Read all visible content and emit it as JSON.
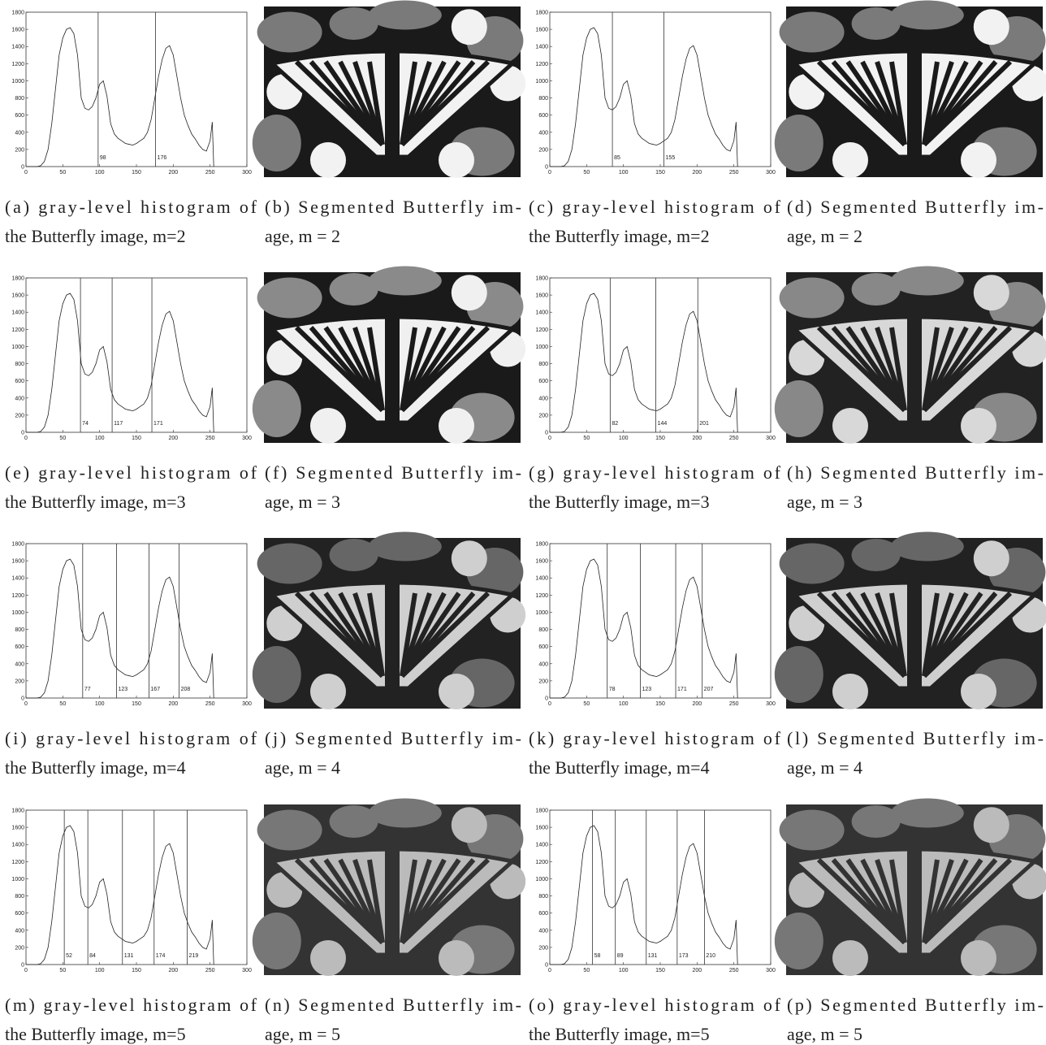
{
  "chart_data": {
    "type": "line",
    "x": [
      0,
      5,
      10,
      15,
      20,
      25,
      30,
      35,
      40,
      45,
      50,
      55,
      60,
      65,
      70,
      75,
      80,
      85,
      90,
      95,
      100,
      105,
      110,
      115,
      120,
      125,
      130,
      135,
      140,
      145,
      150,
      155,
      160,
      165,
      170,
      175,
      180,
      185,
      190,
      195,
      200,
      205,
      210,
      215,
      220,
      225,
      230,
      235,
      240,
      245,
      250,
      253,
      255
    ],
    "values": [
      0,
      0,
      0,
      0,
      10,
      60,
      200,
      500,
      900,
      1300,
      1500,
      1600,
      1620,
      1550,
      1300,
      800,
      680,
      660,
      700,
      800,
      960,
      1000,
      820,
      500,
      380,
      330,
      300,
      270,
      260,
      250,
      270,
      300,
      330,
      400,
      550,
      800,
      1050,
      1250,
      1380,
      1410,
      1300,
      1050,
      800,
      600,
      480,
      380,
      320,
      250,
      200,
      180,
      300,
      520,
      0
    ],
    "color": "#222222",
    "xlim": [
      0,
      300
    ],
    "ylim": [
      0,
      1800
    ],
    "xticks": [
      0,
      50,
      100,
      150,
      200,
      250,
      300
    ],
    "yticks": [
      0,
      200,
      400,
      600,
      800,
      1000,
      1200,
      1400,
      1600,
      1800
    ],
    "panels": [
      {
        "thresholds": [
          98,
          176
        ],
        "caption": [
          "(a) gray-level histogram of",
          "the Butterfly image, m=2"
        ]
      },
      {
        "thresholds": [
          85,
          155
        ],
        "caption": [
          "(c) gray-level histogram of",
          "the Butterfly image, m=2"
        ]
      },
      {
        "thresholds": [
          74,
          117,
          171
        ],
        "caption": [
          "(e) gray-level histogram of",
          "the Butterfly image, m=3"
        ]
      },
      {
        "thresholds": [
          82,
          144,
          201
        ],
        "caption": [
          "(g) gray-level histogram of",
          "the Butterfly image, m=3"
        ]
      },
      {
        "thresholds": [
          77,
          123,
          167,
          208
        ],
        "caption": [
          "(i) gray-level histogram of",
          "the Butterfly image, m=4"
        ]
      },
      {
        "thresholds": [
          78,
          123,
          171,
          207
        ],
        "caption": [
          "(k) gray-level histogram of",
          "the Butterfly image, m=4"
        ]
      },
      {
        "thresholds": [
          52,
          84,
          131,
          174,
          219
        ],
        "caption": [
          "(m) gray-level histogram of",
          "the Butterfly image, m=5"
        ]
      },
      {
        "thresholds": [
          58,
          89,
          131,
          173,
          210
        ],
        "caption": [
          "(o) gray-level histogram of",
          "the Butterfly image, m=5"
        ]
      }
    ]
  },
  "images": [
    {
      "caption": [
        "(b) Segmented Butterfly im-",
        "age, m = 2"
      ]
    },
    {
      "caption": [
        "(d) Segmented Butterfly im-",
        "age, m = 2"
      ]
    },
    {
      "caption": [
        "(f) Segmented Butterfly im-",
        "age, m = 3"
      ]
    },
    {
      "caption": [
        "(h) Segmented Butterfly im-",
        "age, m = 3"
      ]
    },
    {
      "caption": [
        "(j) Segmented Butterfly im-",
        "age, m = 4"
      ]
    },
    {
      "caption": [
        "(l) Segmented Butterfly im-",
        "age, m = 4"
      ]
    },
    {
      "caption": [
        "(n) Segmented Butterfly im-",
        "age, m = 5"
      ]
    },
    {
      "caption": [
        "(p) Segmented Butterfly im-",
        "age, m = 5"
      ]
    }
  ]
}
